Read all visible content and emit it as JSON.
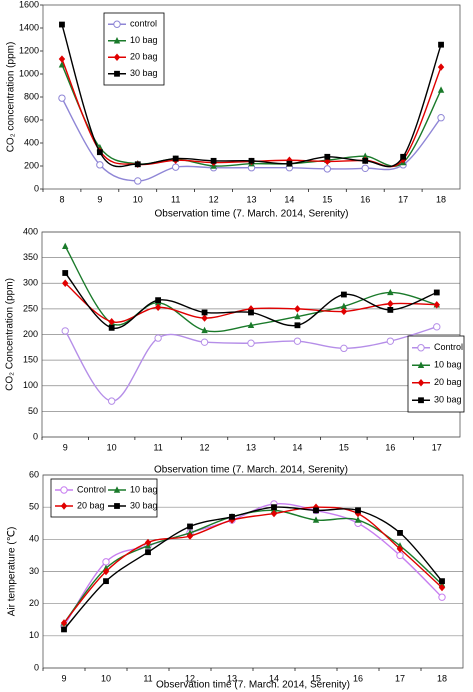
{
  "chart_data": [
    {
      "type": "line",
      "x_label": "Observation time (7. March. 2014, Serenity)",
      "y_label": "CO₂ concentration (ppm)",
      "categories": [
        8,
        9,
        10,
        11,
        12,
        13,
        14,
        15,
        16,
        17,
        18
      ],
      "ylim": [
        0,
        1600
      ],
      "yticks": [
        0,
        200,
        400,
        600,
        800,
        1000,
        1200,
        1400,
        1600
      ],
      "grid": false,
      "legend": "upper left",
      "series": [
        {
          "name": "control",
          "color": "#8f86d6",
          "marker": "circle-open",
          "values": [
            790,
            210,
            70,
            190,
            185,
            185,
            185,
            175,
            180,
            210,
            620
          ]
        },
        {
          "name": "10 bag",
          "color": "#1a7a2a",
          "marker": "triangle",
          "values": [
            1080,
            360,
            220,
            260,
            200,
            220,
            220,
            250,
            285,
            230,
            860
          ]
        },
        {
          "name": "20 bag",
          "color": "#e00000",
          "marker": "diamond",
          "values": [
            1130,
            330,
            215,
            250,
            230,
            240,
            250,
            240,
            250,
            255,
            1060
          ]
        },
        {
          "name": "30 bag",
          "color": "#000000",
          "marker": "square",
          "values": [
            1430,
            320,
            215,
            265,
            245,
            245,
            220,
            280,
            245,
            280,
            1255
          ]
        }
      ]
    },
    {
      "type": "line",
      "x_label": "Observation time (7. March. 2014, Serenity)",
      "y_label": "CO₂ Concentration (ppm)",
      "categories": [
        9,
        10,
        11,
        12,
        13,
        14,
        15,
        16,
        17
      ],
      "ylim": [
        0,
        400
      ],
      "yticks": [
        0,
        50,
        100,
        150,
        200,
        250,
        300,
        350,
        400
      ],
      "grid": true,
      "legend": "right",
      "series": [
        {
          "name": "Control",
          "color": "#b58ee8",
          "marker": "circle-open",
          "values": [
            207,
            70,
            193,
            185,
            183,
            187,
            173,
            187,
            215
          ]
        },
        {
          "name": "10 bag",
          "color": "#1a7a2a",
          "marker": "triangle",
          "values": [
            372,
            222,
            262,
            208,
            218,
            235,
            255,
            282,
            258
          ]
        },
        {
          "name": "20 bag",
          "color": "#e00000",
          "marker": "diamond",
          "values": [
            300,
            225,
            253,
            232,
            250,
            250,
            245,
            260,
            258
          ]
        },
        {
          "name": "30 bag",
          "color": "#000000",
          "marker": "square",
          "values": [
            320,
            213,
            267,
            243,
            243,
            218,
            278,
            248,
            282
          ]
        }
      ]
    },
    {
      "type": "line",
      "x_label": "Observation time (7. March. 2014, Serenity)",
      "y_label": "Air temperature (℃)",
      "categories": [
        9,
        10,
        11,
        12,
        13,
        14,
        15,
        16,
        17,
        18
      ],
      "ylim": [
        0,
        60
      ],
      "yticks": [
        0,
        10,
        20,
        30,
        40,
        50,
        60
      ],
      "grid": true,
      "legend": "upper left",
      "series": [
        {
          "name": "Control",
          "color": "#c77ef0",
          "marker": "circle-open",
          "values": [
            13,
            33,
            38,
            42,
            46,
            51,
            49,
            45,
            35,
            22
          ]
        },
        {
          "name": "10 bag",
          "color": "#1a7a2a",
          "marker": "triangle",
          "values": [
            14,
            31,
            38,
            42,
            47,
            49,
            46,
            46,
            38,
            26
          ]
        },
        {
          "name": "20 bag",
          "color": "#e00000",
          "marker": "diamond",
          "values": [
            14,
            30,
            39,
            41,
            46,
            48,
            50,
            48,
            37,
            25
          ]
        },
        {
          "name": "30 bag",
          "color": "#000000",
          "marker": "square",
          "values": [
            12,
            27,
            36,
            44,
            47,
            50,
            49,
            49,
            42,
            27
          ]
        }
      ]
    }
  ]
}
